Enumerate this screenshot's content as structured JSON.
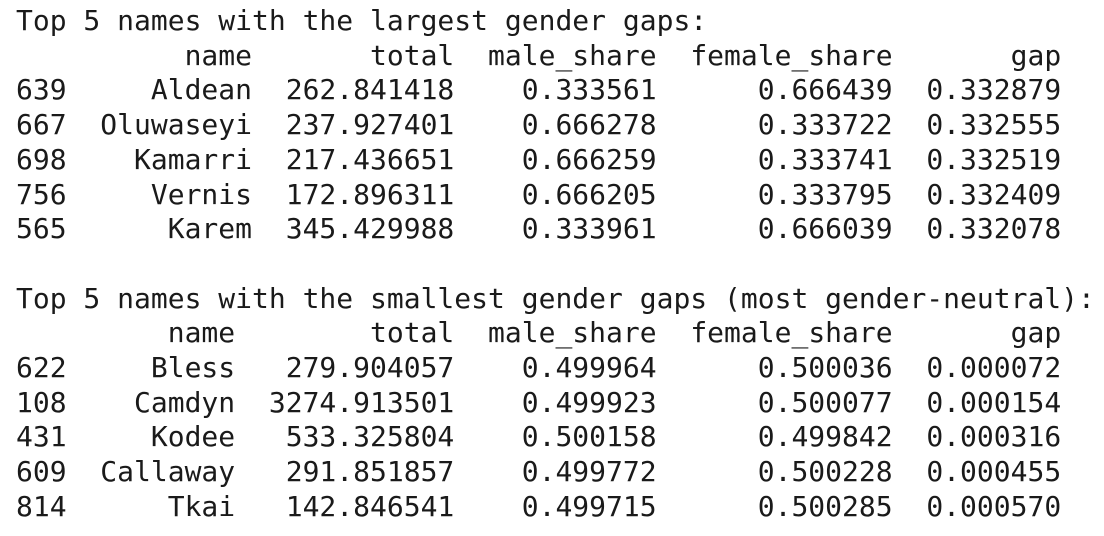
{
  "sections": [
    {
      "title": "Top 5 names with the largest gender gaps:",
      "columns": [
        "name",
        "total",
        "male_share",
        "female_share",
        "gap"
      ],
      "rows": [
        {
          "index": "639",
          "cells": [
            "Aldean",
            "262.841418",
            "0.333561",
            "0.666439",
            "0.332879"
          ]
        },
        {
          "index": "667",
          "cells": [
            "Oluwaseyi",
            "237.927401",
            "0.666278",
            "0.333722",
            "0.332555"
          ]
        },
        {
          "index": "698",
          "cells": [
            "Kamarri",
            "217.436651",
            "0.666259",
            "0.333741",
            "0.332519"
          ]
        },
        {
          "index": "756",
          "cells": [
            "Vernis",
            "172.896311",
            "0.666205",
            "0.333795",
            "0.332409"
          ]
        },
        {
          "index": "565",
          "cells": [
            "Karem",
            "345.429988",
            "0.333961",
            "0.666039",
            "0.332078"
          ]
        }
      ]
    },
    {
      "title": "Top 5 names with the smallest gender gaps (most gender-neutral):",
      "columns": [
        "name",
        "total",
        "male_share",
        "female_share",
        "gap"
      ],
      "rows": [
        {
          "index": "622",
          "cells": [
            "Bless",
            "279.904057",
            "0.499964",
            "0.500036",
            "0.000072"
          ]
        },
        {
          "index": "108",
          "cells": [
            "Camdyn",
            "3274.913501",
            "0.499923",
            "0.500077",
            "0.000154"
          ]
        },
        {
          "index": "431",
          "cells": [
            "Kodee",
            "533.325804",
            "0.500158",
            "0.499842",
            "0.000316"
          ]
        },
        {
          "index": "609",
          "cells": [
            "Callaway",
            "291.851857",
            "0.499772",
            "0.500228",
            "0.000455"
          ]
        },
        {
          "index": "814",
          "cells": [
            "Tkai",
            "142.846541",
            "0.499715",
            "0.500285",
            "0.000570"
          ]
        }
      ]
    }
  ]
}
